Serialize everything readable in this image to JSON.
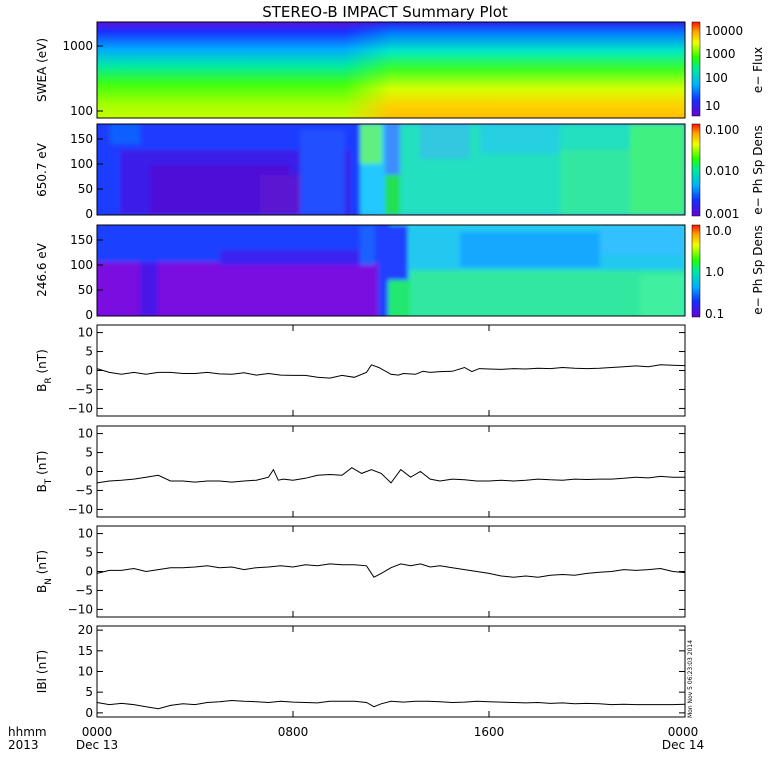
{
  "title": "STEREO-B IMPACT Summary Plot",
  "stamp": "Mon Nov 5 06:23:03 2014",
  "x_axis": {
    "left_labels": [
      "hhmm",
      "2013"
    ],
    "tick_labels": [
      "0000",
      "0800",
      "1600",
      "0000"
    ],
    "date_labels": [
      "Dec 13",
      "Dec 14"
    ]
  },
  "chart_data": [
    {
      "type": "heatmap",
      "ylabel": "SWEA (eV)",
      "y_scale": "log",
      "ylim": [
        90,
        2000
      ],
      "ytick_labels": [
        "1000",
        "100"
      ],
      "colorbar": {
        "label": "e− Flux",
        "scale": "log",
        "tick_labels": [
          "10000",
          "1000",
          "100",
          "10"
        ]
      }
    },
    {
      "type": "heatmap",
      "ylabel": "650.7 eV",
      "ylim": [
        0,
        180
      ],
      "ytick_labels": [
        "150",
        "100",
        "50",
        "0"
      ],
      "colorbar": {
        "label": "e− Ph Sp Dens",
        "scale": "log",
        "tick_labels": [
          "0.100",
          "0.010",
          "0.001"
        ]
      }
    },
    {
      "type": "heatmap",
      "ylabel": "246.6 eV",
      "ylim": [
        0,
        180
      ],
      "ytick_labels": [
        "150",
        "100",
        "50",
        "0"
      ],
      "colorbar": {
        "label": "e− Ph Sp Dens",
        "scale": "log",
        "tick_labels": [
          "10.0",
          "1.0",
          "0.1"
        ]
      }
    },
    {
      "type": "line",
      "ylabel": "B_R (nT)",
      "ylabel_main": "B",
      "ylabel_sub": "R",
      "ylabel_unit": "(nT)",
      "ylim": [
        -12,
        12
      ],
      "ytick_labels": [
        "10",
        "5",
        "0",
        "−5",
        "−10"
      ],
      "x": [
        0,
        0.5,
        1,
        1.5,
        2,
        2.5,
        3,
        3.5,
        4,
        4.5,
        5,
        5.5,
        6,
        6.5,
        7,
        7.5,
        8,
        8.5,
        9,
        9.5,
        10,
        10.5,
        11,
        11.2,
        11.5,
        12,
        12.3,
        12.5,
        13,
        13.3,
        13.6,
        14,
        14.5,
        15,
        15.3,
        15.6,
        16,
        16.5,
        17,
        17.5,
        18,
        18.5,
        19,
        19.5,
        20,
        20.5,
        21,
        21.5,
        22,
        22.5,
        23,
        23.5,
        24
      ],
      "y": [
        0.5,
        -0.5,
        -1.0,
        -0.5,
        -1.0,
        -0.5,
        -0.5,
        -0.8,
        -0.8,
        -0.5,
        -0.9,
        -1.0,
        -0.6,
        -1.2,
        -0.8,
        -1.2,
        -1.3,
        -1.3,
        -1.8,
        -2.0,
        -1.3,
        -1.8,
        -0.5,
        1.5,
        0.8,
        -1.0,
        -1.2,
        -0.8,
        -1.0,
        -0.2,
        -0.5,
        -0.3,
        -0.2,
        0.8,
        -0.3,
        0.5,
        0.4,
        0.3,
        0.5,
        0.4,
        0.6,
        0.5,
        0.8,
        0.6,
        0.5,
        0.6,
        0.8,
        1.0,
        1.2,
        1.0,
        1.5,
        1.4,
        1.3
      ]
    },
    {
      "type": "line",
      "ylabel": "B_T (nT)",
      "ylabel_main": "B",
      "ylabel_sub": "T",
      "ylabel_unit": "(nT)",
      "ylim": [
        -12,
        12
      ],
      "ytick_labels": [
        "10",
        "5",
        "0",
        "−5",
        "−10"
      ],
      "x": [
        0,
        0.5,
        1,
        1.5,
        2,
        2.5,
        3,
        3.5,
        4,
        4.5,
        5,
        5.5,
        6,
        6.5,
        7,
        7.2,
        7.4,
        7.6,
        8,
        8.5,
        9,
        9.5,
        10,
        10.4,
        10.8,
        11.2,
        11.6,
        12,
        12.4,
        12.8,
        13.2,
        13.6,
        14,
        14.5,
        15,
        15.5,
        16,
        16.5,
        17,
        17.5,
        18,
        18.5,
        19,
        19.5,
        20,
        20.5,
        21,
        21.5,
        22,
        22.5,
        23,
        23.5,
        24
      ],
      "y": [
        -3.0,
        -2.5,
        -2.3,
        -2.0,
        -1.5,
        -1.0,
        -2.5,
        -2.5,
        -2.8,
        -2.5,
        -2.5,
        -2.8,
        -2.5,
        -2.3,
        -1.5,
        0.5,
        -2.3,
        -2.0,
        -2.3,
        -1.8,
        -1.0,
        -0.8,
        -1.0,
        1.0,
        -0.5,
        0.5,
        -0.5,
        -3.0,
        0.5,
        -1.5,
        0.0,
        -2.0,
        -2.5,
        -2.0,
        -2.2,
        -2.5,
        -2.5,
        -2.3,
        -2.5,
        -2.3,
        -2.0,
        -2.2,
        -2.3,
        -2.0,
        -2.1,
        -2.0,
        -2.0,
        -1.8,
        -1.5,
        -1.7,
        -1.3,
        -1.5,
        -1.5
      ]
    },
    {
      "type": "line",
      "ylabel": "B_N (nT)",
      "ylabel_main": "B",
      "ylabel_sub": "N",
      "ylabel_unit": "(nT)",
      "ylim": [
        -12,
        12
      ],
      "ytick_labels": [
        "10",
        "5",
        "0",
        "−5",
        "−10"
      ],
      "x": [
        0,
        0.5,
        1,
        1.5,
        2,
        2.5,
        3,
        3.5,
        4,
        4.5,
        5,
        5.5,
        6,
        6.5,
        7,
        7.5,
        8,
        8.5,
        9,
        9.5,
        10,
        10.5,
        11,
        11.3,
        11.6,
        12,
        12.4,
        12.8,
        13.2,
        13.6,
        14,
        14.5,
        15,
        15.5,
        16,
        16.5,
        17,
        17.5,
        18,
        18.5,
        19,
        19.5,
        20,
        20.5,
        21,
        21.5,
        22,
        22.5,
        23,
        23.5,
        24
      ],
      "y": [
        -0.5,
        0.3,
        0.3,
        0.8,
        0.0,
        0.5,
        1.0,
        1.0,
        1.2,
        1.5,
        1.0,
        1.2,
        0.5,
        1.0,
        1.2,
        1.5,
        1.2,
        1.8,
        1.5,
        2.0,
        1.8,
        1.8,
        1.5,
        -1.5,
        -0.5,
        1.0,
        2.0,
        1.5,
        2.0,
        1.2,
        1.5,
        1.0,
        0.5,
        0.0,
        -0.5,
        -1.2,
        -1.5,
        -1.2,
        -1.5,
        -1.0,
        -0.8,
        -1.0,
        -0.5,
        -0.2,
        0.0,
        0.5,
        0.3,
        0.5,
        0.8,
        0.0,
        -0.3
      ]
    },
    {
      "type": "line",
      "ylabel": "|B| (nT)",
      "ylabel_main": "IBI",
      "ylabel_unit": "(nT)",
      "ylim": [
        -1,
        21
      ],
      "ytick_labels": [
        "20",
        "15",
        "10",
        "5",
        "0"
      ],
      "x": [
        0,
        0.5,
        1,
        1.5,
        2,
        2.5,
        3,
        3.5,
        4,
        4.5,
        5,
        5.5,
        6,
        6.5,
        7,
        7.5,
        8,
        8.5,
        9,
        9.5,
        10,
        10.5,
        11,
        11.3,
        11.6,
        12,
        12.5,
        13,
        13.5,
        14,
        14.5,
        15,
        15.5,
        16,
        16.5,
        17,
        17.5,
        18,
        18.5,
        19,
        19.5,
        20,
        20.5,
        21,
        21.5,
        22,
        22.5,
        23,
        23.5,
        24
      ],
      "y": [
        2.5,
        2.0,
        2.3,
        2.0,
        1.5,
        1.0,
        1.8,
        2.2,
        2.0,
        2.5,
        2.7,
        3.0,
        2.8,
        2.7,
        2.5,
        2.8,
        2.6,
        2.5,
        2.4,
        2.8,
        2.8,
        2.8,
        2.5,
        1.5,
        2.2,
        2.8,
        2.6,
        2.8,
        2.8,
        2.7,
        2.5,
        2.6,
        2.8,
        2.7,
        2.6,
        2.5,
        2.4,
        2.5,
        2.3,
        2.4,
        2.2,
        2.3,
        2.2,
        2.0,
        2.1,
        2.0,
        2.0,
        2.0,
        2.0,
        2.1
      ]
    }
  ]
}
